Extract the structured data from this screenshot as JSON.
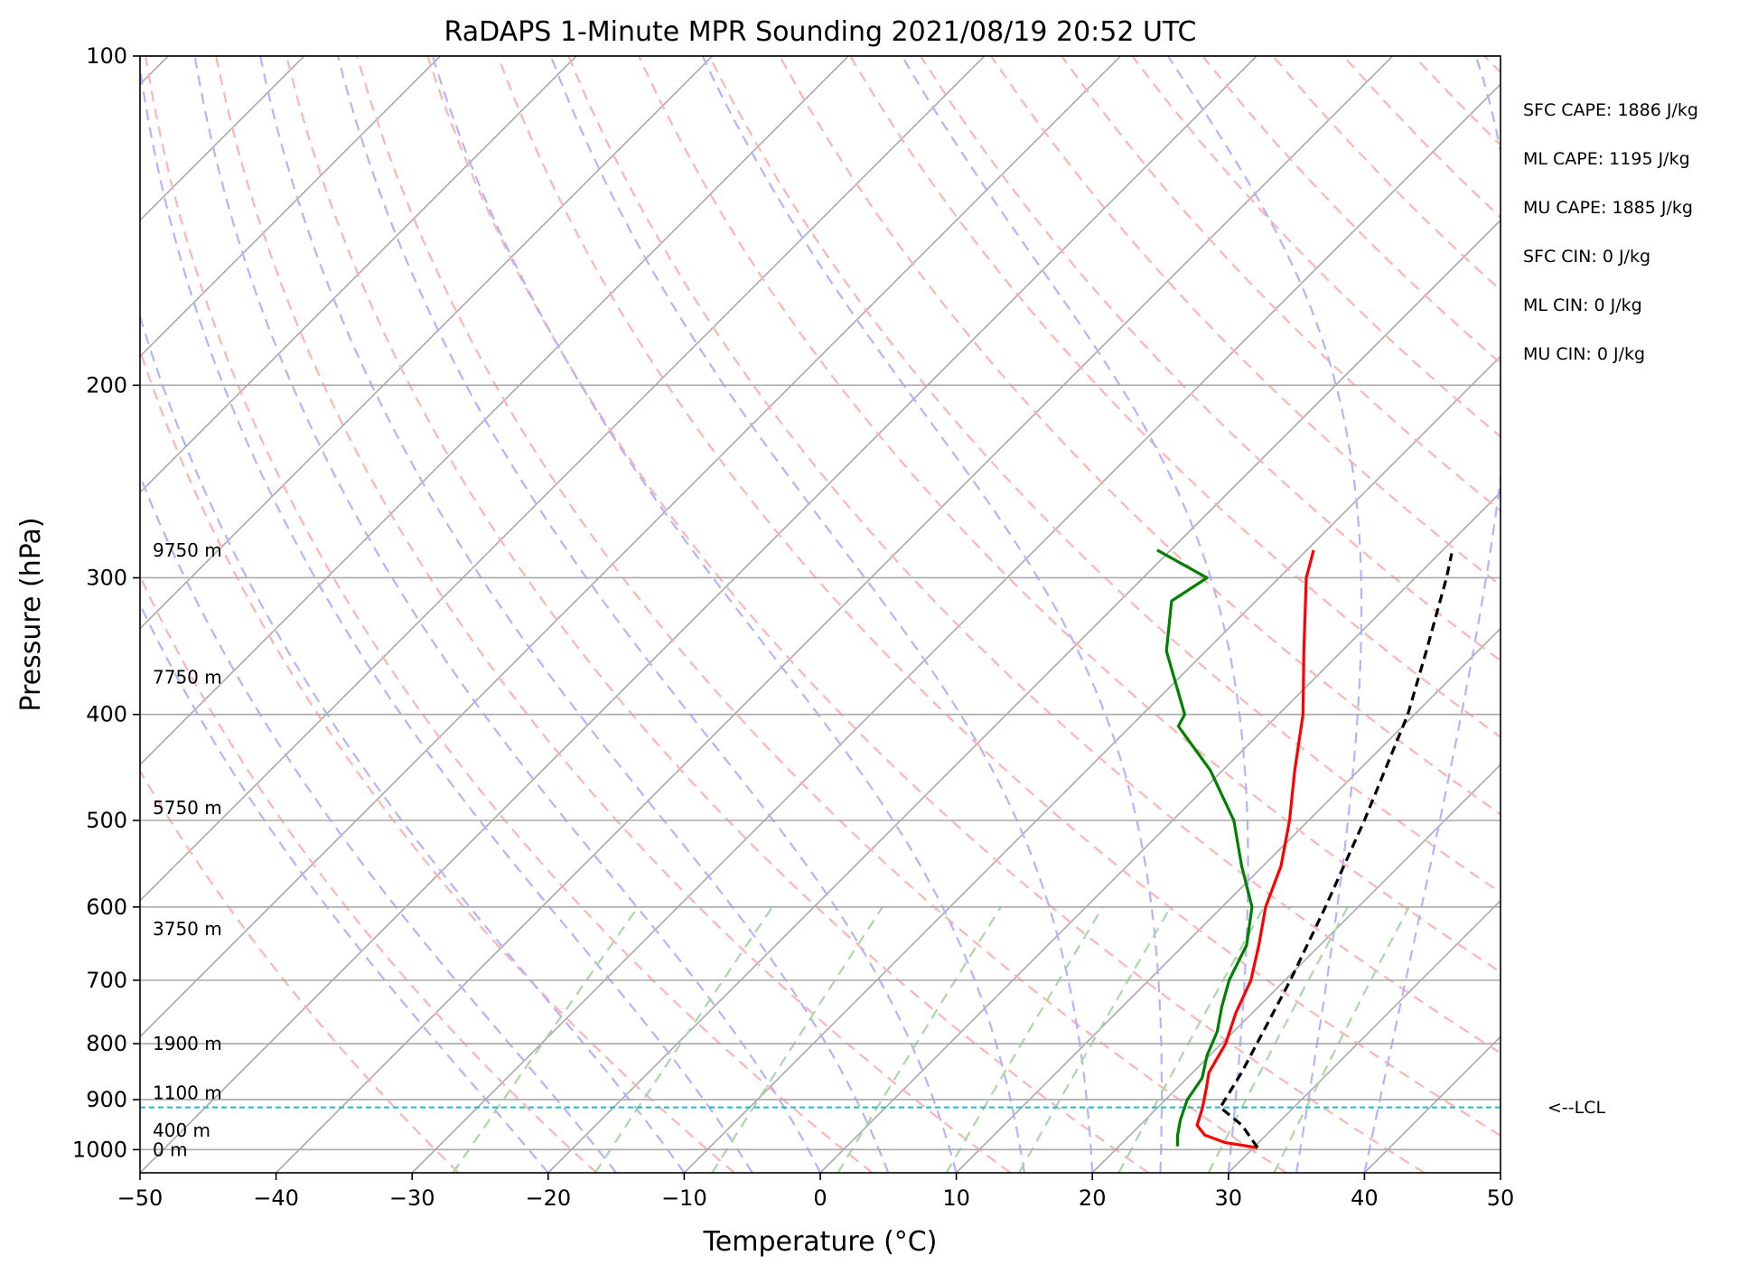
{
  "chart_data": {
    "type": "line",
    "title": "RaDAPS 1-Minute MPR Sounding 2021/08/19 20:52 UTC",
    "xlabel": "Temperature (°C)",
    "ylabel": "Pressure (hPa)",
    "xlim": [
      -50,
      50
    ],
    "ylim": [
      1050,
      100
    ],
    "y_scale": "log",
    "x_ticks": [
      -50,
      -40,
      -30,
      -20,
      -10,
      0,
      10,
      20,
      30,
      40,
      50
    ],
    "x_tick_labels": [
      "−50",
      "−40",
      "−30",
      "−20",
      "−10",
      "0",
      "10",
      "20",
      "30",
      "40",
      "50"
    ],
    "y_ticks": [
      100,
      200,
      300,
      400,
      500,
      600,
      700,
      800,
      900,
      1000
    ],
    "y_tick_labels": [
      "100",
      "200",
      "300",
      "400",
      "500",
      "600",
      "700",
      "800",
      "900",
      "1000"
    ],
    "grid": true,
    "skew": "skew-T log-P",
    "series": [
      {
        "color": "#ff0000",
        "style": "solid",
        "points": [
          {
            "p": 996,
            "t": 30.3
          },
          {
            "p": 985,
            "t": 27.5
          },
          {
            "p": 970,
            "t": 25.5
          },
          {
            "p": 950,
            "t": 24.2
          },
          {
            "p": 915,
            "t": 23.3
          },
          {
            "p": 880,
            "t": 22.2
          },
          {
            "p": 850,
            "t": 21.2
          },
          {
            "p": 800,
            "t": 20.3
          },
          {
            "p": 750,
            "t": 18.8
          },
          {
            "p": 700,
            "t": 17.5
          },
          {
            "p": 650,
            "t": 15.5
          },
          {
            "p": 600,
            "t": 13.2
          },
          {
            "p": 550,
            "t": 11.3
          },
          {
            "p": 500,
            "t": 8.6
          },
          {
            "p": 450,
            "t": 5.3
          },
          {
            "p": 400,
            "t": 1.8
          },
          {
            "p": 350,
            "t": -2.8
          },
          {
            "p": 300,
            "t": -8.0
          },
          {
            "p": 283,
            "t": -9.5
          }
        ]
      },
      {
        "color": "#008000",
        "style": "solid",
        "points": [
          {
            "p": 993,
            "t": 24.3
          },
          {
            "p": 970,
            "t": 23.5
          },
          {
            "p": 940,
            "t": 22.6
          },
          {
            "p": 900,
            "t": 21.6
          },
          {
            "p": 860,
            "t": 21.1
          },
          {
            "p": 820,
            "t": 19.8
          },
          {
            "p": 780,
            "t": 18.8
          },
          {
            "p": 740,
            "t": 17.3
          },
          {
            "p": 700,
            "t": 15.9
          },
          {
            "p": 650,
            "t": 14.6
          },
          {
            "p": 600,
            "t": 12.2
          },
          {
            "p": 550,
            "t": 8.4
          },
          {
            "p": 500,
            "t": 4.5
          },
          {
            "p": 450,
            "t": -0.9
          },
          {
            "p": 410,
            "t": -6.5
          },
          {
            "p": 400,
            "t": -6.9
          },
          {
            "p": 350,
            "t": -12.9
          },
          {
            "p": 315,
            "t": -16.2
          },
          {
            "p": 300,
            "t": -15.3
          },
          {
            "p": 283,
            "t": -21.0
          }
        ]
      },
      {
        "color": "#000000",
        "style": "dashed",
        "points": [
          {
            "p": 996,
            "t": 30.3
          },
          {
            "p": 950,
            "t": 27.5
          },
          {
            "p": 915,
            "t": 24.6
          },
          {
            "p": 850,
            "t": 23.6
          },
          {
            "p": 800,
            "t": 22.6
          },
          {
            "p": 700,
            "t": 20.4
          },
          {
            "p": 600,
            "t": 17.6
          },
          {
            "p": 500,
            "t": 14.1
          },
          {
            "p": 400,
            "t": 9.5
          },
          {
            "p": 350,
            "t": 6.2
          },
          {
            "p": 300,
            "t": 2.3
          },
          {
            "p": 285,
            "t": 0.9
          }
        ]
      }
    ],
    "lcl_pressure": 915,
    "lcl_label": "<--LCL",
    "height_labels": [
      {
        "p": 283,
        "text": "9750 m"
      },
      {
        "p": 370,
        "text": "7750 m"
      },
      {
        "p": 487,
        "text": "5750 m"
      },
      {
        "p": 628,
        "text": "3750 m"
      },
      {
        "p": 800,
        "text": "1900 m"
      },
      {
        "p": 887,
        "text": "1100 m"
      },
      {
        "p": 960,
        "text": "400 m"
      },
      {
        "p": 1000,
        "text": "0 m"
      }
    ],
    "stats": [
      "SFC CAPE: 1886 J/kg",
      "ML CAPE: 1195 J/kg",
      "MU CAPE: 1885 J/kg",
      "SFC CIN: 0 J/kg",
      "ML CIN: 0 J/kg",
      "MU CIN: 0 J/kg"
    ],
    "background_line_colors": {
      "isotherms": "#a9a9a9",
      "dry_adiabats": "#ffb3b3",
      "moist_adiabats": "#b3b3ff",
      "mixing_ratio": "#a8d8a8",
      "lcl": "#17becf"
    }
  }
}
